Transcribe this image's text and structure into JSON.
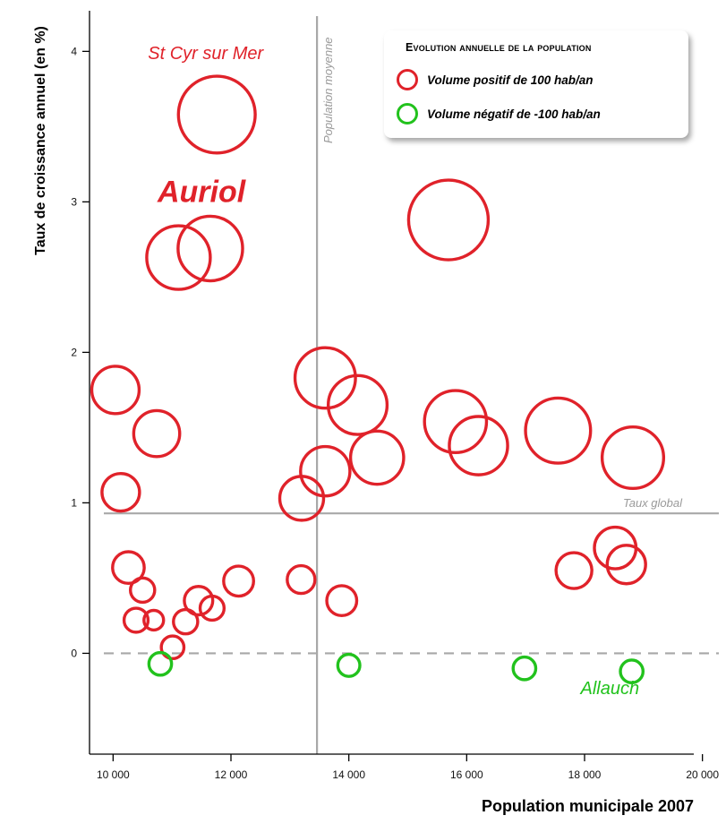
{
  "chart_data": {
    "type": "scatter",
    "title": "",
    "xlabel": "Population municipale 2007",
    "ylabel": "Taux de croissance annuel (en %)",
    "xlim": [
      9600,
      20400
    ],
    "ylim": [
      -0.67,
      4.27
    ],
    "x_ticks": [
      10000,
      12000,
      14000,
      16000,
      18000,
      20000
    ],
    "x_tick_labels": [
      "10 000",
      "12 000",
      "14 000",
      "16 000",
      "18 000",
      "20 000"
    ],
    "y_ticks": [
      0,
      1,
      2,
      3,
      4
    ],
    "y_tick_labels": [
      "0",
      "1",
      "2",
      "3",
      "4"
    ],
    "grid": false,
    "reference_lines": [
      {
        "orientation": "vertical",
        "x": 13460,
        "label": "Population moyenne",
        "style": "solid",
        "color": "#a8a8a8"
      },
      {
        "orientation": "horizontal",
        "y": 0.93,
        "label": "Taux global",
        "style": "solid",
        "color": "#a8a8a8"
      },
      {
        "orientation": "horizontal",
        "y": 0,
        "label": "",
        "style": "dashed",
        "color": "#a8a8a8"
      }
    ],
    "legend": {
      "title": "Evolution annuelle de la population",
      "position": "top-right",
      "items": [
        {
          "label": "Volume positif de 100 hab/an",
          "color": "#e0222a"
        },
        {
          "label": "Volume négatif de -100 hab/an",
          "color": "#22c21d"
        }
      ]
    },
    "annotations": [
      {
        "text": "St Cyr sur Mer",
        "x": 11570,
        "y": 3.95,
        "color": "#e0222a",
        "style": "italic"
      },
      {
        "text": "Auriol",
        "x": 11500,
        "y": 3.0,
        "color": "#e0222a",
        "style": "bold-italic-large"
      },
      {
        "text": "Allauch",
        "x": 18430,
        "y": -0.27,
        "color": "#22c21d",
        "style": "italic"
      }
    ],
    "series": [
      {
        "name": "Volume positif de 100 hab/an",
        "color": "#e0222a",
        "points": [
          {
            "x": 11760,
            "y": 3.58,
            "change": 460
          },
          {
            "x": 15690,
            "y": 2.88,
            "change": 495
          },
          {
            "x": 11110,
            "y": 2.63,
            "change": 315
          },
          {
            "x": 11650,
            "y": 2.69,
            "change": 325
          },
          {
            "x": 10040,
            "y": 1.75,
            "change": 175
          },
          {
            "x": 10740,
            "y": 1.46,
            "change": 165
          },
          {
            "x": 10130,
            "y": 1.07,
            "change": 110
          },
          {
            "x": 13600,
            "y": 1.83,
            "change": 285
          },
          {
            "x": 14150,
            "y": 1.65,
            "change": 270
          },
          {
            "x": 13600,
            "y": 1.21,
            "change": 190
          },
          {
            "x": 13200,
            "y": 1.03,
            "change": 150
          },
          {
            "x": 14480,
            "y": 1.3,
            "change": 220
          },
          {
            "x": 15810,
            "y": 1.54,
            "change": 300
          },
          {
            "x": 16200,
            "y": 1.38,
            "change": 265
          },
          {
            "x": 17550,
            "y": 1.48,
            "change": 330
          },
          {
            "x": 18820,
            "y": 1.3,
            "change": 295
          },
          {
            "x": 18520,
            "y": 0.7,
            "change": 135
          },
          {
            "x": 18710,
            "y": 0.59,
            "change": 115
          },
          {
            "x": 17820,
            "y": 0.55,
            "change": 100
          },
          {
            "x": 10260,
            "y": 0.57,
            "change": 78
          },
          {
            "x": 10500,
            "y": 0.42,
            "change": 46
          },
          {
            "x": 10390,
            "y": 0.22,
            "change": 45
          },
          {
            "x": 10690,
            "y": 0.22,
            "change": 30
          },
          {
            "x": 11010,
            "y": 0.04,
            "change": 40
          },
          {
            "x": 11230,
            "y": 0.21,
            "change": 46
          },
          {
            "x": 11450,
            "y": 0.35,
            "change": 63
          },
          {
            "x": 11680,
            "y": 0.3,
            "change": 45
          },
          {
            "x": 12130,
            "y": 0.48,
            "change": 70
          },
          {
            "x": 13190,
            "y": 0.49,
            "change": 60
          },
          {
            "x": 13880,
            "y": 0.35,
            "change": 70
          }
        ]
      },
      {
        "name": "Volume négatif de -100 hab/an",
        "color": "#22c21d",
        "points": [
          {
            "x": 10800,
            "y": -0.07,
            "change": -40
          },
          {
            "x": 14000,
            "y": -0.08,
            "change": -38
          },
          {
            "x": 16980,
            "y": -0.1,
            "change": -40
          },
          {
            "x": 18800,
            "y": -0.12,
            "change": -40
          }
        ]
      }
    ]
  }
}
